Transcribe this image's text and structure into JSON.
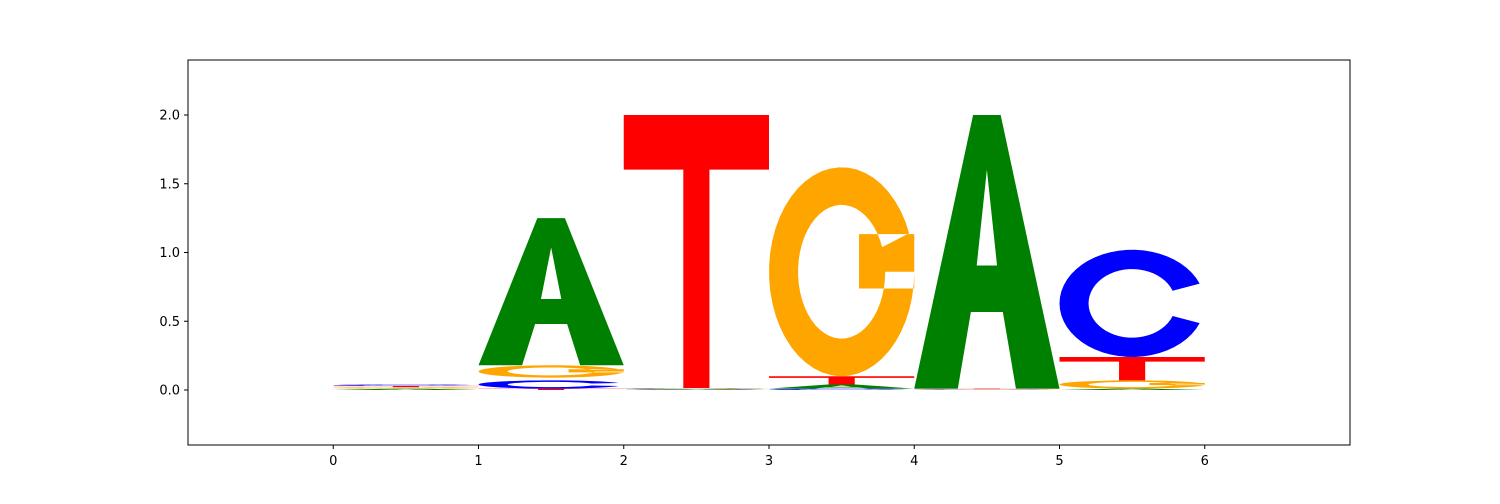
{
  "chart_data": {
    "type": "sequence-logo",
    "title": "",
    "xlabel": "",
    "ylabel": "",
    "xlim": [
      -1,
      7
    ],
    "ylim": [
      -0.4,
      2.4
    ],
    "x_ticks": [
      "0",
      "1",
      "2",
      "3",
      "4",
      "5",
      "6"
    ],
    "y_ticks": [
      "0.0",
      "0.5",
      "1.0",
      "1.5",
      "2.0"
    ],
    "grid": false,
    "colors": {
      "A": "#008000",
      "C": "#0000ff",
      "G": "#ffa500",
      "T": "#ff0000"
    },
    "positions": [
      {
        "start": 0,
        "letters": [
          {
            "base": "A",
            "bottom": 0.0,
            "height": 0.01
          },
          {
            "base": "G",
            "bottom": 0.01,
            "height": 0.01
          },
          {
            "base": "T",
            "bottom": 0.02,
            "height": 0.01
          },
          {
            "base": "C",
            "bottom": 0.03,
            "height": 0.01
          }
        ]
      },
      {
        "start": 1,
        "letters": [
          {
            "base": "T",
            "bottom": 0.0,
            "height": 0.01
          },
          {
            "base": "C",
            "bottom": 0.01,
            "height": 0.06
          },
          {
            "base": "G",
            "bottom": 0.09,
            "height": 0.09
          },
          {
            "base": "A",
            "bottom": 0.18,
            "height": 1.07
          }
        ]
      },
      {
        "start": 2,
        "letters": [
          {
            "base": "A",
            "bottom": 0.0,
            "height": 0.005
          },
          {
            "base": "C",
            "bottom": 0.005,
            "height": 0.005
          },
          {
            "base": "G",
            "bottom": 0.01,
            "height": 0.005
          },
          {
            "base": "T",
            "bottom": 0.015,
            "height": 1.985
          }
        ]
      },
      {
        "start": 3,
        "letters": [
          {
            "base": "C",
            "bottom": 0.0,
            "height": 0.01
          },
          {
            "base": "A",
            "bottom": 0.01,
            "height": 0.03
          },
          {
            "base": "T",
            "bottom": 0.04,
            "height": 0.06
          },
          {
            "base": "G",
            "bottom": 0.1,
            "height": 1.52
          }
        ]
      },
      {
        "start": 4,
        "letters": [
          {
            "base": "C",
            "bottom": 0.0,
            "height": 0.003
          },
          {
            "base": "G",
            "bottom": 0.003,
            "height": 0.003
          },
          {
            "base": "T",
            "bottom": 0.006,
            "height": 0.004
          },
          {
            "base": "A",
            "bottom": 0.01,
            "height": 1.99
          }
        ]
      },
      {
        "start": 5,
        "letters": [
          {
            "base": "A",
            "bottom": 0.0,
            "height": 0.01
          },
          {
            "base": "G",
            "bottom": 0.01,
            "height": 0.06
          },
          {
            "base": "T",
            "bottom": 0.07,
            "height": 0.17
          },
          {
            "base": "C",
            "bottom": 0.24,
            "height": 0.78
          }
        ]
      }
    ]
  }
}
